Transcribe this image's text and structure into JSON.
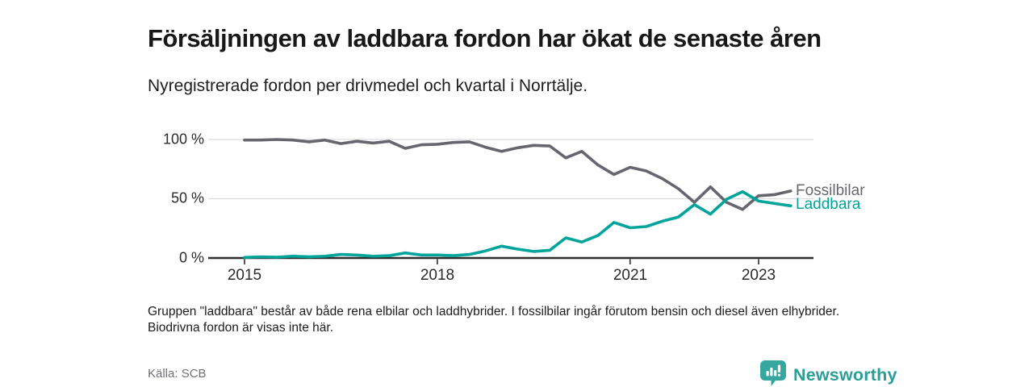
{
  "header": {
    "title": "Försäljningen av laddbara fordon har ökat de senaste åren",
    "subtitle": "Nyregistrerade fordon per drivmedel och kvartal i Norrtälje."
  },
  "chart_data": {
    "type": "line",
    "title": "Försäljningen av laddbara fordon har ökat de senaste åren",
    "subtitle": "Nyregistrerade fordon per drivmedel och kvartal i Norrtälje.",
    "x_unit": "quarter",
    "frequency": "quarterly",
    "x_start": "2015 Q1",
    "x_end": "2023 Q3",
    "ylim": [
      0,
      100
    ],
    "grid": "horizontal",
    "y_ticks": [
      0,
      50,
      100
    ],
    "y_tick_labels": [
      "0 %",
      "50 %",
      "100 %"
    ],
    "x_tick_years": [
      2015,
      2018,
      2021,
      2023
    ],
    "x_tick_labels": [
      "2015",
      "2018",
      "2021",
      "2023"
    ],
    "legend_position": "end-of-line-right",
    "axis_color": "#2d2d2d",
    "gridline_color": "#dcdcdc",
    "series": [
      {
        "name": "Fossilbilar",
        "color": "#66666e",
        "values": [
          99.5,
          99.5,
          100,
          99.5,
          98,
          99.5,
          96.5,
          98.5,
          97,
          98.5,
          92.5,
          95.5,
          96,
          97.5,
          98,
          93.5,
          90,
          93,
          95,
          94.5,
          84.5,
          90,
          78.5,
          70.5,
          76.5,
          73.5,
          67,
          58.5,
          47,
          60,
          47,
          41,
          52.5,
          53.5,
          56.5
        ]
      },
      {
        "name": "Laddbara",
        "color": "#00a49b",
        "values": [
          0.5,
          1,
          0.7,
          1.5,
          1,
          1.5,
          3,
          2.5,
          1.5,
          2,
          4.3,
          2.5,
          2.5,
          2,
          3,
          6,
          10,
          7.5,
          5.5,
          6.5,
          17,
          13.5,
          19,
          30,
          25.5,
          26.5,
          31,
          34.5,
          45,
          37,
          49.5,
          56,
          48,
          46,
          44
        ]
      }
    ]
  },
  "footnote": "Gruppen \"laddbara\" består av både rena elbilar och laddhybrider. I fossilbilar ingår förutom bensin och diesel även elhybrider. Biodrivna fordon är visas inte här.",
  "source": "Källa: SCB",
  "branding": {
    "logo_text": "Newsworthy",
    "logo_icon": "bar-chart-speech-bubble-icon",
    "brand_color": "#2c9e96",
    "icon_color": "#35a79e"
  }
}
